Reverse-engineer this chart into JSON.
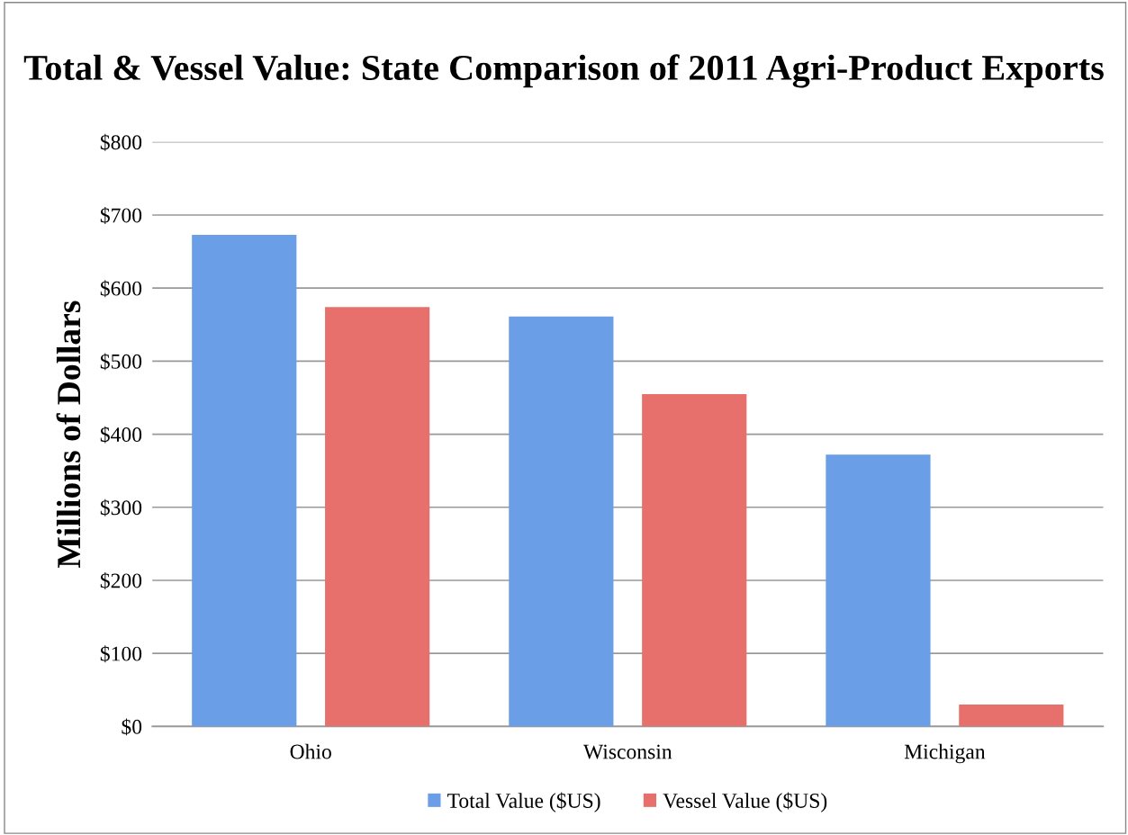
{
  "chart_data": {
    "type": "bar",
    "title": "Total & Vessel Value: State Comparison of 2011 Agri-Product Exports",
    "ylabel": "Millions of Dollars",
    "categories": [
      "Ohio",
      "Wisconsin",
      "Michigan"
    ],
    "series": [
      {
        "name": "Total Value ($US)",
        "color": "#6a9ee6",
        "values": [
          673,
          561,
          372
        ]
      },
      {
        "name": "Vessel Value ($US)",
        "color": "#e8706c",
        "values": [
          574,
          455,
          30
        ]
      }
    ],
    "ylim": [
      0,
      800
    ],
    "yticks": [
      {
        "value": 0,
        "label": "$0"
      },
      {
        "value": 100,
        "label": "$100"
      },
      {
        "value": 200,
        "label": "$200"
      },
      {
        "value": 300,
        "label": "$300"
      },
      {
        "value": 400,
        "label": "$400"
      },
      {
        "value": 500,
        "label": "$500"
      },
      {
        "value": 600,
        "label": "$600"
      },
      {
        "value": 700,
        "label": "$700"
      },
      {
        "value": 800,
        "label": "$800"
      }
    ],
    "grid": "y",
    "legend": "bottom"
  }
}
